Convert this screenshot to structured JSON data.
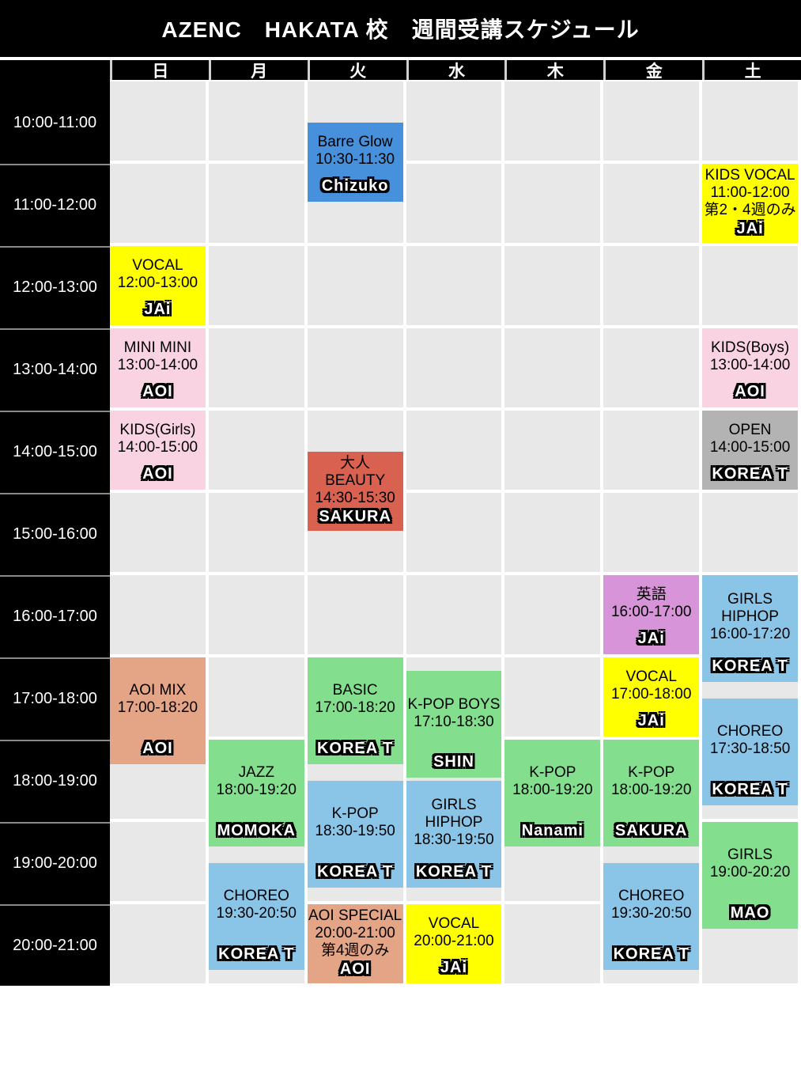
{
  "title": "AZENC　HAKATA 校　週間受講スケジュール",
  "days": [
    "日",
    "月",
    "火",
    "水",
    "木",
    "金",
    "土"
  ],
  "time_slots": [
    "10:00-11:00",
    "11:00-12:00",
    "12:00-13:00",
    "13:00-14:00",
    "14:00-15:00",
    "15:00-16:00",
    "16:00-17:00",
    "17:00-18:00",
    "18:00-19:00",
    "19:00-20:00",
    "20:00-21:00"
  ],
  "colors": {
    "blue": "#4790db",
    "lightblue": "#8ac5e8",
    "green": "#83de8d",
    "yellow": "#ffff00",
    "pink": "#f9d3e2",
    "gray": "#b3b3b3",
    "red": "#d9614f",
    "purple": "#d794d8",
    "tan": "#e3a585",
    "cell_bg": "#e8e8e8",
    "header_bg": "#000000"
  },
  "events": [
    {
      "day": "火",
      "name": "Barre Glow",
      "start": "10:30",
      "end": "11:30",
      "time_label": "10:30-11:30",
      "instructor": "Chizuko",
      "color": "blue"
    },
    {
      "day": "土",
      "name": "KIDS VOCAL",
      "start": "11:00",
      "end": "12:00",
      "time_label": "11:00-12:00",
      "note": "第2・4週のみ",
      "instructor": "JAi",
      "color": "yellow"
    },
    {
      "day": "日",
      "name": "VOCAL",
      "start": "12:00",
      "end": "13:00",
      "time_label": "12:00-13:00",
      "instructor": "JAi",
      "color": "yellow"
    },
    {
      "day": "日",
      "name": "MINI MINI",
      "start": "13:00",
      "end": "14:00",
      "time_label": "13:00-14:00",
      "instructor": "AOI",
      "color": "pink"
    },
    {
      "day": "土",
      "name": "KIDS(Boys)",
      "start": "13:00",
      "end": "14:00",
      "time_label": "13:00-14:00",
      "instructor": "AOI",
      "color": "pink"
    },
    {
      "day": "日",
      "name": "KIDS(Girls)",
      "start": "14:00",
      "end": "15:00",
      "time_label": "14:00-15:00",
      "instructor": "AOI",
      "color": "pink"
    },
    {
      "day": "土",
      "name": "OPEN",
      "start": "14:00",
      "end": "15:00",
      "time_label": "14:00-15:00",
      "instructor": "KOREA T",
      "color": "gray"
    },
    {
      "day": "火",
      "name": "大人 BEAUTY",
      "start": "14:30",
      "end": "15:30",
      "time_label": "14:30-15:30",
      "instructor": "SAKURA",
      "color": "red"
    },
    {
      "day": "金",
      "name": "英語",
      "start": "16:00",
      "end": "17:00",
      "time_label": "16:00-17:00",
      "instructor": "JAi",
      "color": "purple"
    },
    {
      "day": "土",
      "name": "GIRLS HIPHOP",
      "start": "16:00",
      "end": "17:20",
      "time_label": "16:00-17:20",
      "instructor": "KOREA T",
      "color": "lightblue"
    },
    {
      "day": "日",
      "name": "AOI MIX",
      "start": "17:00",
      "end": "18:20",
      "time_label": "17:00-18:20",
      "instructor": "AOI",
      "color": "tan"
    },
    {
      "day": "火",
      "name": "BASIC",
      "start": "17:00",
      "end": "18:20",
      "time_label": "17:00-18:20",
      "instructor": "KOREA T",
      "color": "green"
    },
    {
      "day": "水",
      "name": "K-POP BOYS",
      "start": "17:10",
      "end": "18:30",
      "time_label": "17:10-18:30",
      "instructor": "SHIN",
      "color": "green"
    },
    {
      "day": "金",
      "name": "VOCAL",
      "start": "17:00",
      "end": "18:00",
      "time_label": "17:00-18:00",
      "instructor": "JAi",
      "color": "yellow"
    },
    {
      "day": "土",
      "name": "CHOREO",
      "start": "17:30",
      "end": "18:50",
      "time_label": "17:30-18:50",
      "instructor": "KOREA T",
      "color": "lightblue"
    },
    {
      "day": "月",
      "name": "JAZZ",
      "start": "18:00",
      "end": "19:20",
      "time_label": "18:00-19:20",
      "instructor": "MOMOKA",
      "color": "green"
    },
    {
      "day": "火",
      "name": "K-POP",
      "start": "18:30",
      "end": "19:50",
      "time_label": "18:30-19:50",
      "instructor": "KOREA T",
      "color": "lightblue"
    },
    {
      "day": "水",
      "name": "GIRLS HIPHOP",
      "start": "18:30",
      "end": "19:50",
      "time_label": "18:30-19:50",
      "instructor": "KOREA T",
      "color": "lightblue"
    },
    {
      "day": "木",
      "name": "K-POP",
      "start": "18:00",
      "end": "19:20",
      "time_label": "18:00-19:20",
      "instructor": "Nanami",
      "color": "green"
    },
    {
      "day": "金",
      "name": "K-POP",
      "start": "18:00",
      "end": "19:20",
      "time_label": "18:00-19:20",
      "instructor": "SAKURA",
      "color": "green"
    },
    {
      "day": "土",
      "name": "GIRLS",
      "start": "19:00",
      "end": "20:20",
      "time_label": "19:00-20:20",
      "instructor": "MAO",
      "color": "green"
    },
    {
      "day": "月",
      "name": "CHOREO",
      "start": "19:30",
      "end": "20:50",
      "time_label": "19:30-20:50",
      "instructor": "KOREA T",
      "color": "lightblue"
    },
    {
      "day": "金",
      "name": "CHOREO",
      "start": "19:30",
      "end": "20:50",
      "time_label": "19:30-20:50",
      "instructor": "KOREA T",
      "color": "lightblue"
    },
    {
      "day": "火",
      "name": "AOI SPECIAL",
      "start": "20:00",
      "end": "21:00",
      "time_label": "20:00-21:00",
      "note": "第4週のみ",
      "instructor": "AOI",
      "color": "tan"
    },
    {
      "day": "水",
      "name": "VOCAL",
      "start": "20:00",
      "end": "21:00",
      "time_label": "20:00-21:00",
      "instructor": "JAi",
      "color": "yellow"
    }
  ]
}
